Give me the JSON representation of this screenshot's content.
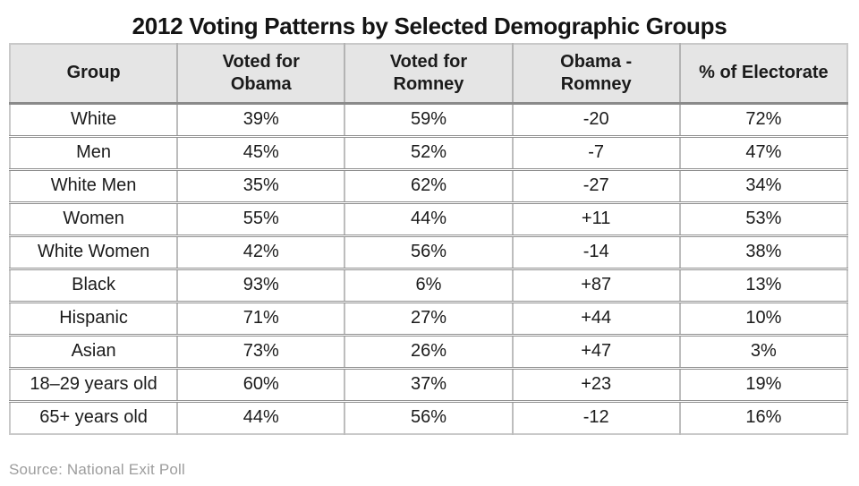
{
  "title": "2012 Voting Patterns by Selected Demographic Groups",
  "source": "Source: National Exit Poll",
  "colors": {
    "header_bg": "#e5e5e5",
    "outer_border": "#c9c9c9",
    "row_separator": "#909090",
    "column_divider": "#bdbdbd",
    "text": "#1b1b1b",
    "source_text": "#9d9d9d"
  },
  "display": {
    "headers": [
      "Group",
      "Voted for\nObama",
      "Voted for\nRomney",
      "Obama -\nRomney",
      "% of Electorate"
    ]
  },
  "chart_data": {
    "type": "table",
    "title": "2012 Voting Patterns by Selected Demographic Groups",
    "columns": [
      "Group",
      "Voted for Obama",
      "Voted for Romney",
      "Obama - Romney",
      "% of Electorate"
    ],
    "rows": [
      [
        "White",
        "39%",
        "59%",
        "-20",
        "72%"
      ],
      [
        "Men",
        "45%",
        "52%",
        "-7",
        "47%"
      ],
      [
        "White Men",
        "35%",
        "62%",
        "-27",
        "34%"
      ],
      [
        "Women",
        "55%",
        "44%",
        "+11",
        "53%"
      ],
      [
        "White Women",
        "42%",
        "56%",
        "-14",
        "38%"
      ],
      [
        "Black",
        "93%",
        "6%",
        "+87",
        "13%"
      ],
      [
        "Hispanic",
        "71%",
        "27%",
        "+44",
        "10%"
      ],
      [
        "Asian",
        "73%",
        "26%",
        "+47",
        "3%"
      ],
      [
        "18–29 years old",
        "60%",
        "37%",
        "+23",
        "19%"
      ],
      [
        "65+ years old",
        "44%",
        "56%",
        "-12",
        "16%"
      ]
    ],
    "source": "Source: National Exit Poll"
  }
}
